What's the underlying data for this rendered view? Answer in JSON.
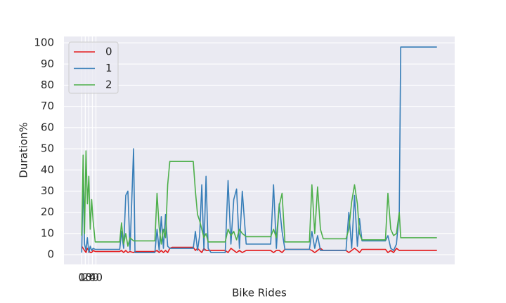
{
  "chart_data": {
    "type": "line",
    "xlabel": "Bike Rides",
    "ylabel": "Duration%",
    "x": [
      0,
      4,
      8,
      12,
      16,
      20,
      24,
      28,
      32,
      38,
      107,
      112,
      118,
      124,
      130,
      136,
      146,
      150,
      206,
      212,
      218,
      224,
      230,
      236,
      242,
      248,
      255,
      314,
      320,
      326,
      332,
      338,
      344,
      350,
      356,
      364,
      404,
      412,
      420,
      428,
      436,
      444,
      452,
      463,
      532,
      540,
      548,
      556,
      564,
      572,
      641,
      648,
      656,
      664,
      672,
      680,
      744,
      752,
      760,
      768,
      776,
      782,
      789,
      855,
      862,
      870,
      878,
      886,
      894,
      898,
      1000
    ],
    "series": [
      {
        "name": "0",
        "color": "#e41a1c",
        "values": [
          4,
          3,
          2,
          1,
          3,
          2,
          1,
          1,
          2,
          1.5,
          1.5,
          2,
          1,
          2,
          1,
          1.5,
          1,
          1.5,
          1.5,
          2,
          1,
          2,
          1,
          2,
          1,
          3,
          3.5,
          3.5,
          2,
          3,
          2,
          1,
          3,
          2,
          2,
          2,
          2,
          1,
          3,
          2,
          1,
          2,
          1,
          2,
          2,
          1,
          2,
          2,
          1,
          2.5,
          2.5,
          2,
          1,
          2,
          3,
          2,
          2,
          1,
          2,
          3,
          2,
          1,
          2.5,
          2.5,
          1,
          2,
          1,
          3,
          2,
          2,
          2
        ]
      },
      {
        "name": "1",
        "color": "#377eb8",
        "values": [
          1,
          36,
          5,
          2,
          8,
          1,
          4,
          2,
          3,
          2.5,
          2.5,
          11,
          3,
          28,
          30,
          2,
          50,
          1,
          1,
          12,
          2,
          18,
          3,
          19,
          4,
          3,
          3,
          3,
          11,
          2,
          9,
          33,
          2,
          37,
          3,
          1,
          1,
          35,
          5,
          26,
          31,
          3,
          30,
          5,
          5,
          33,
          3,
          24,
          11,
          2.5,
          2.5,
          11,
          3,
          9,
          2,
          2,
          2,
          20,
          3,
          28,
          4,
          17,
          6.5,
          6.5,
          9,
          3,
          2,
          5,
          20,
          98,
          98
        ]
      },
      {
        "name": "2",
        "color": "#4daf4a",
        "values": [
          9,
          47,
          10,
          49,
          24,
          37,
          12,
          26,
          16,
          6,
          6,
          15,
          5,
          10,
          4,
          8,
          6.5,
          6.5,
          6.5,
          29,
          13,
          5,
          12,
          8,
          33,
          44,
          44,
          44,
          30,
          19,
          16,
          12,
          8,
          10,
          6,
          6,
          6,
          12,
          9,
          11,
          7,
          12,
          10,
          8.5,
          8.5,
          12,
          8,
          23,
          29,
          6,
          6,
          33,
          10,
          32,
          12,
          7.5,
          7.5,
          12,
          25,
          33,
          24,
          10,
          7,
          7,
          29,
          12,
          9,
          10,
          20,
          8,
          8
        ]
      }
    ],
    "xlim": [
      -50,
      1050
    ],
    "xticks": [
      0,
      10,
      20,
      30,
      40
    ],
    "ylim": [
      -4.6,
      103
    ],
    "yticks": [
      0,
      10,
      20,
      30,
      40,
      50,
      60,
      70,
      80,
      90,
      100
    ],
    "grid": true,
    "legend": "upper left"
  }
}
